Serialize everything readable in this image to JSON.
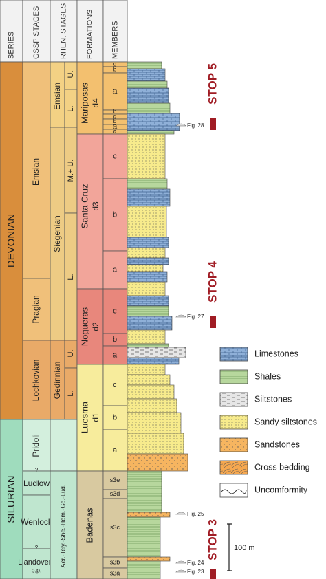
{
  "header": {
    "series": "SERIES",
    "gssp": "GSSP STAGES",
    "rhen": "RHEN. STAGES",
    "formations": "FORMATIONS",
    "members": "MEMBERS"
  },
  "series": [
    "DEVONIAN",
    "SILURIAN"
  ],
  "gssp_stages": [
    "Emsian",
    "Pragian",
    "Lochkovian",
    "Pridoli",
    "Ludlow",
    "Wenlock",
    "Llandovery",
    "p.p."
  ],
  "uncertain_boundaries": [
    "?",
    "?"
  ],
  "rhen_stages": [
    "Emsian",
    "U.",
    "L.",
    "Siegenian",
    "M.+ U.",
    "L.",
    "Gedinnian",
    "U.",
    "L.",
    "Aer.-Tely.-She.-Hom.-Go.-Lud."
  ],
  "formations": [
    {
      "name": "Mariposas",
      "code": "d4"
    },
    {
      "name": "Santa Cruz",
      "code": "d3"
    },
    {
      "name": "Nogueras",
      "code": "d2"
    },
    {
      "name": "Luesma",
      "code": "d1"
    },
    {
      "name": "Badenas"
    }
  ],
  "members": [
    "g",
    "b",
    "a",
    "b",
    "g",
    "b",
    "a",
    "a",
    "c",
    "b",
    "a",
    "c",
    "b",
    "a",
    "c",
    "b",
    "a",
    "s3e",
    "s3d",
    "s3c",
    "s3b",
    "s3a"
  ],
  "stops": [
    "STOP 5",
    "STOP 4",
    "STOP 3"
  ],
  "figures": [
    "Fig. 28",
    "Fig. 27",
    "Fig. 25",
    "Fig. 24",
    "Fig. 23"
  ],
  "scale": "100 m",
  "legend": [
    "Limestones",
    "Shales",
    "Siltstones",
    "Sandy siltstones",
    "Sandstones",
    "Cross bedding",
    "Uncomformity"
  ]
}
